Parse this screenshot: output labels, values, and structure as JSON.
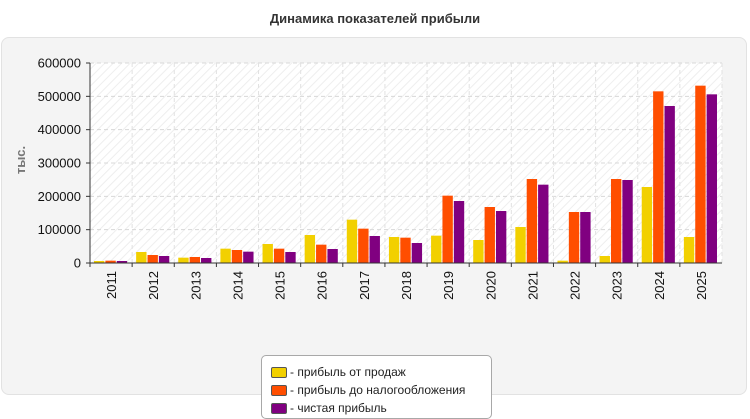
{
  "title": "Динамика показателей прибыли",
  "chart_data": {
    "type": "bar",
    "title": "Динамика показателей прибыли",
    "xlabel": "",
    "ylabel": "тыс.",
    "ylim": [
      0,
      600000
    ],
    "yticks": [
      0,
      100000,
      200000,
      300000,
      400000,
      500000,
      600000
    ],
    "grid": true,
    "legend_position": "bottom",
    "categories": [
      "2011",
      "2012",
      "2013",
      "2014",
      "2015",
      "2016",
      "2017",
      "2018",
      "2019",
      "2020",
      "2021",
      "2022",
      "2023",
      "2024",
      "2025"
    ],
    "series": [
      {
        "name": "- прибыль от продаж",
        "color": "#f2d000",
        "values": [
          6000,
          33000,
          16000,
          43000,
          57000,
          84000,
          130000,
          78000,
          82000,
          69000,
          108000,
          7000,
          21000,
          228000,
          78000
        ]
      },
      {
        "name": "- прибыль до налогообложения",
        "color": "#ff4e00",
        "values": [
          7000,
          24000,
          18000,
          39000,
          43000,
          55000,
          103000,
          76000,
          202000,
          168000,
          252000,
          153000,
          252000,
          515000,
          532000
        ]
      },
      {
        "name": "- чистая прибыль",
        "color": "#800080",
        "values": [
          6000,
          21000,
          15000,
          34000,
          33000,
          42000,
          81000,
          60000,
          186000,
          156000,
          235000,
          153000,
          249000,
          471000,
          506000
        ]
      }
    ]
  }
}
